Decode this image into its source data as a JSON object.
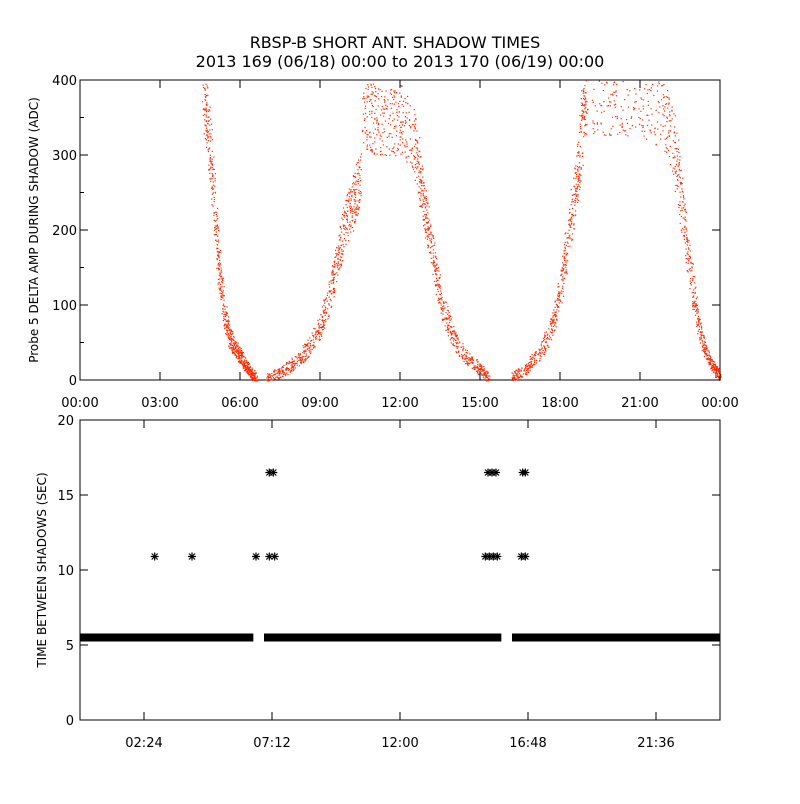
{
  "chart_data": [
    {
      "type": "scatter",
      "title": "RBSP-B SHORT ANT. SHADOW TIMES",
      "subtitle": "2013 169 (06/18) 00:00 to 2013 170 (06/19) 00:00",
      "xlabel": "",
      "ylabel": "Probe 5 DELTA AMP DURING SHADOW (ADC)",
      "x_unit": "hours",
      "xlim": [
        0,
        24
      ],
      "ylim": [
        0,
        400
      ],
      "x_tick_labels": [
        "00:00",
        "03:00",
        "06:00",
        "09:00",
        "12:00",
        "15:00",
        "18:00",
        "21:00",
        "00:00"
      ],
      "y_ticks": [
        0,
        100,
        200,
        300,
        400
      ],
      "color": "#ff2a00",
      "segments": [
        {
          "x": [
            4.6,
            4.8,
            5.0,
            5.2,
            5.4,
            5.6,
            5.8,
            6.0,
            6.2,
            6.4,
            6.6
          ],
          "y": [
            395,
            330,
            250,
            150,
            90,
            58,
            42,
            32,
            20,
            10,
            2
          ]
        },
        {
          "x": [
            7.0,
            7.5,
            8.0,
            8.5,
            9.0,
            9.4,
            9.7,
            10.0,
            10.3,
            10.5
          ],
          "y": [
            2,
            10,
            22,
            40,
            70,
            120,
            170,
            215,
            245,
            270
          ]
        },
        {
          "x": [
            10.6,
            11.0,
            11.5,
            12.0,
            12.5,
            12.8,
            13.0,
            13.3,
            13.6,
            14.0,
            14.5,
            15.0,
            15.3
          ],
          "y": [
            360,
            350,
            340,
            350,
            320,
            260,
            210,
            150,
            95,
            55,
            30,
            15,
            3
          ]
        },
        {
          "x": [
            16.2,
            16.7,
            17.2,
            17.7,
            18.0,
            18.3,
            18.6,
            18.8,
            19.0
          ],
          "y": [
            5,
            15,
            35,
            70,
            120,
            190,
            260,
            330,
            395
          ]
        },
        {
          "x": [
            19.2,
            20.0,
            21.0,
            21.8,
            22.3,
            22.6,
            22.9,
            23.2,
            23.5,
            23.8,
            24.0
          ],
          "y": [
            380,
            375,
            370,
            360,
            310,
            220,
            140,
            70,
            35,
            15,
            5
          ]
        }
      ]
    },
    {
      "type": "scatter",
      "title": "",
      "xlabel": "",
      "ylabel": "TIME BETWEEN SHADOWS (SEC)",
      "x_unit": "hours",
      "xlim": [
        0,
        24
      ],
      "ylim": [
        0,
        20
      ],
      "x_tick_labels": [
        "02:24",
        "07:12",
        "12:00",
        "16:48",
        "21:36"
      ],
      "y_ticks": [
        0,
        5,
        10,
        15,
        20
      ],
      "marker": "*",
      "color": "#000000",
      "baseline_value": 5.5,
      "baseline_ranges": [
        [
          0,
          6.5
        ],
        [
          6.9,
          15.8
        ],
        [
          16.2,
          24
        ]
      ],
      "points": [
        {
          "x": 2.8,
          "y": 10.9
        },
        {
          "x": 4.2,
          "y": 10.9
        },
        {
          "x": 6.6,
          "y": 10.9
        },
        {
          "x": 7.1,
          "y": 10.9
        },
        {
          "x": 7.3,
          "y": 10.9
        },
        {
          "x": 7.1,
          "y": 16.5
        },
        {
          "x": 7.25,
          "y": 16.5
        },
        {
          "x": 15.2,
          "y": 10.9
        },
        {
          "x": 15.35,
          "y": 10.9
        },
        {
          "x": 15.5,
          "y": 10.9
        },
        {
          "x": 15.65,
          "y": 10.9
        },
        {
          "x": 15.3,
          "y": 16.5
        },
        {
          "x": 15.45,
          "y": 16.5
        },
        {
          "x": 15.6,
          "y": 16.5
        },
        {
          "x": 16.55,
          "y": 10.9
        },
        {
          "x": 16.7,
          "y": 10.9
        },
        {
          "x": 16.6,
          "y": 16.5
        },
        {
          "x": 16.7,
          "y": 16.5
        }
      ]
    }
  ]
}
